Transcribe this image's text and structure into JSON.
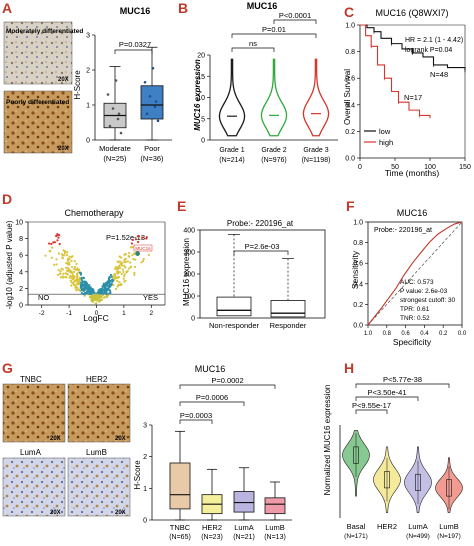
{
  "panel_letters": {
    "a": "A",
    "b": "B",
    "c": "C",
    "d": "D",
    "e": "E",
    "f": "F",
    "g": "G",
    "h": "H"
  },
  "panel_a": {
    "title": "MUC16",
    "img1_label": "Moderately differentiated",
    "img2_label": "Poorly differentiated",
    "scale": "20X",
    "ylabel": "H-Score",
    "pvalue": "P=0.0327",
    "categories": [
      "Moderate",
      "Poor"
    ],
    "n_labels": [
      "(N=25)",
      "(N=36)"
    ],
    "colors": [
      "#c9c9c9",
      "#3f7fc4"
    ]
  },
  "panel_b": {
    "title": "MUC16",
    "ylabel": "MUC16 expression",
    "categories": [
      "Grade 1",
      "Grade 2",
      "Grade 3"
    ],
    "n_labels": [
      "(N=214)",
      "(N=976)",
      "(N=1198)"
    ],
    "brackets": [
      "ns",
      "P=0.01",
      "P<0.0001"
    ],
    "colors": [
      "#1a1a1a",
      "#2eaa3a",
      "#d9342b"
    ]
  },
  "panel_c": {
    "title": "MUC16 (Q8WXI7)",
    "ylabel": "Overall Survival",
    "xlabel": "Time (months)",
    "hr": "HR = 2.1 (1 - 4.42)",
    "logrank": "logrank P=0.04",
    "n_low": "N=48",
    "n_high": "N=17",
    "legend": [
      "low",
      "high"
    ],
    "colors": [
      "#111111",
      "#d9342b"
    ]
  },
  "panel_d": {
    "title": "Chemotherapy",
    "ylabel": "-log10 (adjusted P value)",
    "xlabel": "LogFC",
    "pvalue": "P=1.52e-13",
    "gene_tag": "MUC16",
    "no_label": "NO",
    "yes_label": "YES"
  },
  "panel_e": {
    "probe": "Probe:- 220196_at",
    "pvalue": "P=2.6e-03",
    "ylabel": "MUC16 expression",
    "categories": [
      "Non-responder",
      "Responder"
    ]
  },
  "panel_f": {
    "title": "MUC16",
    "probe": "Probe:- 220196_at",
    "ylabel": "Sensitivity",
    "xlabel": "Specificity",
    "stats": [
      "AUC: 0.573",
      "P value: 2.6e-03",
      "strongest cutoff: 30",
      "TPR: 0.61",
      "TNR: 0.52"
    ]
  },
  "panel_g": {
    "title": "MUC16",
    "img_labels": [
      "TNBC",
      "HER2",
      "LumA",
      "LumB"
    ],
    "scale": "20X",
    "ylabel": "H-Score",
    "brackets": [
      "P=0.0002",
      "P=0.0006",
      "P=0.0003"
    ],
    "categories": [
      "TNBC",
      "HER2",
      "LumA",
      "LumB"
    ],
    "n_labels": [
      "(N=65)",
      "(N=23)",
      "(N=21)",
      "(N=13)"
    ],
    "colors": [
      "#e8c9a8",
      "#f4ef9a",
      "#b9b4e0",
      "#ef9aa8"
    ]
  },
  "panel_h": {
    "ylabel": "Normalized MUC16 expression",
    "brackets": [
      "P<5.77e-38",
      "P<3.50e-41",
      "P<9.55e-17"
    ],
    "categories": [
      "Basal",
      "HER2",
      "LumA",
      "LumB"
    ],
    "n_labels": [
      "(N=171)",
      "(N=499)",
      "(N=197)"
    ],
    "n_her2": "",
    "colors": [
      "#72c07e",
      "#f3e58a",
      "#b9b4e0",
      "#ef8a80"
    ]
  },
  "chart_data": [
    {
      "type": "box",
      "panel": "A",
      "title": "MUC16",
      "ylabel": "H-Score",
      "categories": [
        "Moderate (N=25)",
        "Poor (N=36)"
      ],
      "ylim": [
        0,
        3
      ],
      "yticks": [
        0,
        1,
        2,
        3
      ],
      "boxes": [
        {
          "min": 0.0,
          "q1": 0.35,
          "median": 0.7,
          "q3": 1.05,
          "max": 2.1
        },
        {
          "min": 0.0,
          "q1": 0.6,
          "median": 1.0,
          "q3": 1.55,
          "max": 2.65
        }
      ],
      "annotations": [
        "P=0.0327"
      ]
    },
    {
      "type": "violin",
      "panel": "B",
      "title": "MUC16",
      "ylabel": "MUC16 expression",
      "categories": [
        "Grade 1 (N=214)",
        "Grade 2 (N=976)",
        "Grade 3 (N=1198)"
      ],
      "ylim": [
        0,
        20
      ],
      "yticks": [
        0,
        5,
        10,
        15,
        20
      ],
      "medians": [
        5.6,
        5.8,
        6.2
      ],
      "annotations": [
        "ns",
        "P=0.01",
        "P<0.0001"
      ]
    },
    {
      "type": "line",
      "panel": "C",
      "title": "MUC16 (Q8WXI7)",
      "xlabel": "Time (months)",
      "ylabel": "Overall Survival",
      "xlim": [
        0,
        150
      ],
      "ylim": [
        0,
        1
      ],
      "xticks": [
        0,
        50,
        100,
        150
      ],
      "yticks": [
        0.0,
        0.2,
        0.4,
        0.6,
        0.8,
        1.0
      ],
      "series": [
        {
          "name": "low",
          "x": [
            0,
            10,
            20,
            30,
            45,
            60,
            75,
            90,
            105,
            125,
            150
          ],
          "y": [
            1.0,
            0.98,
            0.95,
            0.9,
            0.86,
            0.82,
            0.79,
            0.76,
            0.7,
            0.68,
            0.66
          ]
        },
        {
          "name": "high",
          "x": [
            0,
            8,
            16,
            25,
            35,
            45,
            55,
            70,
            85,
            100
          ],
          "y": [
            1.0,
            0.92,
            0.84,
            0.7,
            0.6,
            0.5,
            0.42,
            0.36,
            0.32,
            0.3
          ]
        }
      ],
      "annotations": [
        "HR = 2.1 (1 - 4.42)",
        "logrank P=0.04",
        "N=48",
        "N=17"
      ]
    },
    {
      "type": "scatter",
      "panel": "D",
      "title": "Chemotherapy",
      "xlabel": "LogFC",
      "ylabel": "-log10 (adjusted P value)",
      "xlim": [
        -2.5,
        2.5
      ],
      "ylim": [
        0,
        10
      ],
      "xticks": [
        -2,
        -1,
        0,
        1,
        2
      ],
      "yticks": [
        0,
        2,
        4,
        6,
        8,
        10
      ],
      "annotations": [
        "P=1.52e-13",
        "MUC16",
        "NO",
        "YES"
      ]
    },
    {
      "type": "box",
      "panel": "E",
      "ylabel": "MUC16 expression",
      "categories": [
        "Non-responder",
        "Responder"
      ],
      "ylim": [
        0,
        400
      ],
      "yticks": [
        0,
        100,
        200,
        300,
        400
      ],
      "boxes": [
        {
          "min": 0,
          "q1": 10,
          "median": 35,
          "q3": 95,
          "max": 380
        },
        {
          "min": 0,
          "q1": 5,
          "median": 22,
          "q3": 80,
          "max": 270
        }
      ],
      "annotations": [
        "Probe:- 220196_at",
        "P=2.6e-03"
      ]
    },
    {
      "type": "line",
      "panel": "F",
      "title": "MUC16",
      "xlabel": "Specificity",
      "ylabel": "Sensitivity",
      "xlim": [
        1,
        0
      ],
      "ylim": [
        0,
        1
      ],
      "xticks": [
        1.0,
        0.8,
        0.6,
        0.4,
        0.2,
        0.0
      ],
      "yticks": [
        0.0,
        0.2,
        0.4,
        0.6,
        0.8,
        1.0
      ],
      "series": [
        {
          "name": "ROC",
          "x": [
            1.0,
            0.93,
            0.86,
            0.78,
            0.7,
            0.62,
            0.52,
            0.44,
            0.35,
            0.26,
            0.16,
            0.08,
            0.0
          ],
          "y": [
            0.0,
            0.08,
            0.16,
            0.26,
            0.36,
            0.48,
            0.61,
            0.7,
            0.8,
            0.88,
            0.94,
            0.98,
            1.0
          ]
        }
      ],
      "annotations": [
        "Probe:- 220196_at",
        "AUC: 0.573",
        "P value: 2.6e-03",
        "strongest cutoff: 30",
        "TPR: 0.61",
        "TNR: 0.52"
      ]
    },
    {
      "type": "box",
      "panel": "G",
      "title": "MUC16",
      "ylabel": "H-Score",
      "categories": [
        "TNBC (N=65)",
        "HER2 (N=23)",
        "LumA (N=21)",
        "LumB (N=13)"
      ],
      "ylim": [
        0,
        3
      ],
      "yticks": [
        0,
        1,
        2,
        3
      ],
      "boxes": [
        {
          "min": 0.0,
          "q1": 0.35,
          "median": 0.8,
          "q3": 1.8,
          "max": 2.8
        },
        {
          "min": 0.0,
          "q1": 0.2,
          "median": 0.5,
          "q3": 0.8,
          "max": 1.6
        },
        {
          "min": 0.0,
          "q1": 0.25,
          "median": 0.55,
          "q3": 0.9,
          "max": 1.65
        },
        {
          "min": 0.0,
          "q1": 0.2,
          "median": 0.5,
          "q3": 0.7,
          "max": 1.2
        }
      ],
      "annotations": [
        "P=0.0002",
        "P=0.0006",
        "P=0.0003"
      ]
    },
    {
      "type": "violin",
      "panel": "H",
      "ylabel": "Normalized MUC16 expression",
      "categories": [
        "Basal (N=171)",
        "HER2",
        "LumA (N=499)",
        "LumB (N=197)"
      ],
      "ylim": [
        -2,
        15
      ],
      "yticks": [
        0,
        5,
        10,
        15
      ],
      "medians": [
        9.5,
        5.0,
        4.5,
        3.5
      ],
      "annotations": [
        "P<5.77e-38",
        "P<3.50e-41",
        "P<9.55e-17"
      ]
    }
  ]
}
